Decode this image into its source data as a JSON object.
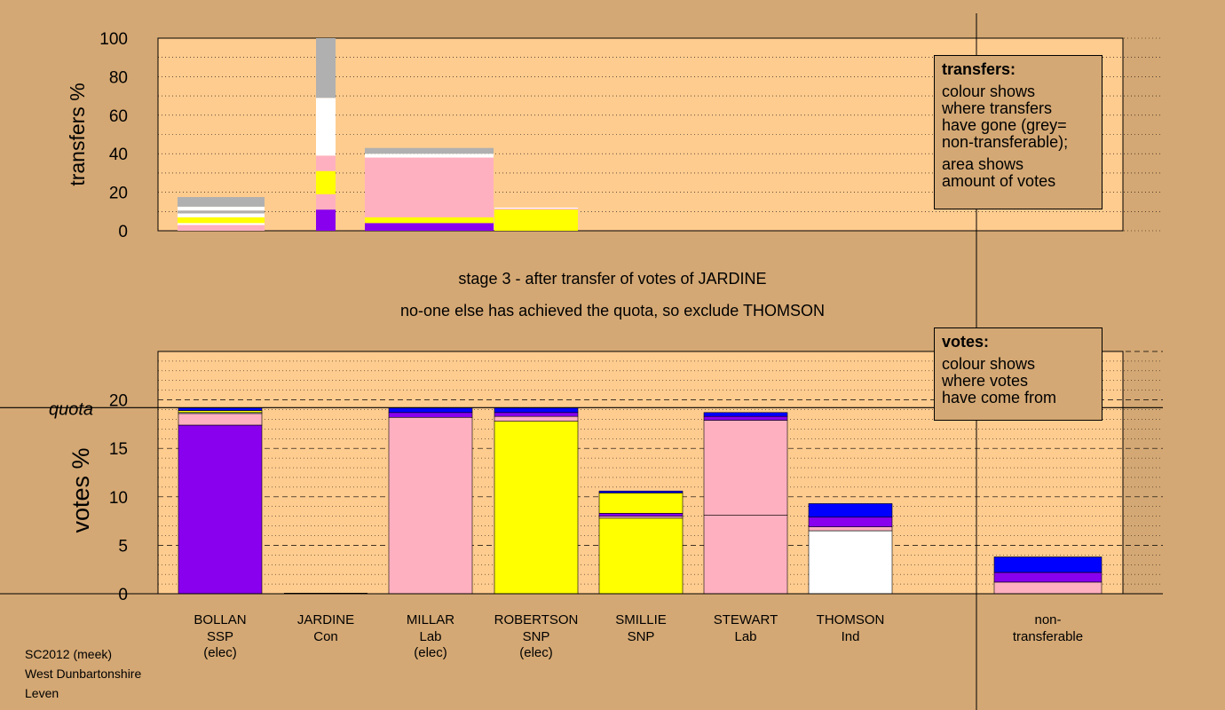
{
  "stage_title": "stage 3 - after transfer of votes of JARDINE",
  "stage_subtitle": "no-one else has achieved the quota, so exclude THOMSON",
  "legend_transfers": {
    "title": "transfers:",
    "lines": [
      "colour shows",
      "where transfers",
      "have gone (grey=",
      "non-transferable);",
      "area shows",
      "amount of votes"
    ]
  },
  "legend_votes": {
    "title": "votes:",
    "lines": [
      "colour shows",
      "where votes",
      "have come from"
    ]
  },
  "footer": [
    "SC2012 (meek)",
    "West Dunbartonshire",
    "Leven"
  ],
  "colors": {
    "background": "#d4a874",
    "plot": "#ffcc8f",
    "ssp": "#8800ee",
    "lab": "#ffb0c0",
    "snp": "#ffff00",
    "ind": "#ffffff",
    "con": "#0000ff",
    "nontransferable": "#b0b0b0"
  },
  "chart_data": [
    {
      "type": "bar",
      "ylabel": "transfers %",
      "ylim": [
        0,
        100
      ],
      "yticks": [
        "0",
        "20",
        "40",
        "60",
        "80",
        "100"
      ],
      "grid": true,
      "note": "top panel: transfers of JARDINE's votes, bar width proportional to candidate's votes",
      "columns": [
        {
          "candidate": "BOLLAN",
          "segments": [
            {
              "color": "lab",
              "value": 3
            },
            {
              "color": "ind",
              "value": 1
            },
            {
              "color": "snp",
              "value": 3
            },
            {
              "color": "ind",
              "value": 2
            },
            {
              "color": "nontransferable",
              "value": 1.5
            },
            {
              "color": "ind",
              "value": 2
            },
            {
              "color": "nontransferable",
              "value": 5
            }
          ]
        },
        {
          "candidate": "JARDINE",
          "segments": [
            {
              "color": "ssp",
              "value": 11
            },
            {
              "color": "lab",
              "value": 8
            },
            {
              "color": "snp",
              "value": 12
            },
            {
              "color": "lab",
              "value": 8
            },
            {
              "color": "ind",
              "value": 30
            },
            {
              "color": "nontransferable",
              "value": 31
            }
          ]
        },
        {
          "candidate": "MILLAR",
          "segments": [
            {
              "color": "ssp",
              "value": 4
            },
            {
              "color": "snp",
              "value": 3
            },
            {
              "color": "lab",
              "value": 31
            },
            {
              "color": "ind",
              "value": 2
            },
            {
              "color": "nontransferable",
              "value": 3
            }
          ]
        },
        {
          "candidate": "ROBERTSON",
          "segments": [
            {
              "color": "snp",
              "value": 11
            },
            {
              "color": "lab",
              "value": 0.5
            },
            {
              "color": "ind",
              "value": 0.5
            }
          ]
        }
      ]
    },
    {
      "type": "bar",
      "ylabel": "votes %",
      "ylim": [
        0,
        25
      ],
      "yticks": [
        "0",
        "5",
        "10",
        "15",
        "20"
      ],
      "quota_label": "quota",
      "quota": 19.2,
      "grid": true,
      "categories": [
        {
          "name": "BOLLAN",
          "party": "SSP",
          "status": "(elec)"
        },
        {
          "name": "JARDINE",
          "party": "Con",
          "status": ""
        },
        {
          "name": "MILLAR",
          "party": "Lab",
          "status": "(elec)"
        },
        {
          "name": "ROBERTSON",
          "party": "SNP",
          "status": "(elec)"
        },
        {
          "name": "SMILLIE",
          "party": "SNP",
          "status": ""
        },
        {
          "name": "STEWART",
          "party": "Lab",
          "status": ""
        },
        {
          "name": "THOMSON",
          "party": "Ind",
          "status": ""
        }
      ],
      "nontransferable_label": [
        "non-",
        "transferable"
      ],
      "bars": [
        {
          "candidate": "BOLLAN",
          "segments": [
            {
              "color": "ssp",
              "value": 17.4
            },
            {
              "color": "lab",
              "value": 1.2
            },
            {
              "color": "ind",
              "value": 0.1
            },
            {
              "color": "snp",
              "value": 0.2
            },
            {
              "color": "con",
              "value": 0.3
            }
          ]
        },
        {
          "candidate": "JARDINE",
          "segments": []
        },
        {
          "candidate": "MILLAR",
          "segments": [
            {
              "color": "lab",
              "value": 18.2
            },
            {
              "color": "ssp",
              "value": 0.5
            },
            {
              "color": "con",
              "value": 0.5
            }
          ]
        },
        {
          "candidate": "ROBERTSON",
          "segments": [
            {
              "color": "snp",
              "value": 17.8
            },
            {
              "color": "lab",
              "value": 0.5
            },
            {
              "color": "ssp",
              "value": 0.4
            },
            {
              "color": "con",
              "value": 0.5
            }
          ]
        },
        {
          "candidate": "SMILLIE",
          "segments": [
            {
              "color": "snp",
              "value": 7.8
            },
            {
              "color": "lab",
              "value": 0.2
            },
            {
              "color": "ssp",
              "value": 0.3
            },
            {
              "color": "snp",
              "value": 2.1
            },
            {
              "color": "con",
              "value": 0.2
            }
          ]
        },
        {
          "candidate": "STEWART",
          "segments": [
            {
              "color": "lab",
              "value": 8.1
            },
            {
              "color": "lab",
              "value": 9.8
            },
            {
              "color": "ssp",
              "value": 0.4
            },
            {
              "color": "con",
              "value": 0.4
            }
          ]
        },
        {
          "candidate": "THOMSON",
          "segments": [
            {
              "color": "ind",
              "value": 6.5
            },
            {
              "color": "lab",
              "value": 0.4
            },
            {
              "color": "ssp",
              "value": 1.0
            },
            {
              "color": "con",
              "value": 1.4
            }
          ]
        },
        {
          "candidate": "non-transferable",
          "segments": [
            {
              "color": "lab",
              "value": 1.2
            },
            {
              "color": "ssp",
              "value": 1.0
            },
            {
              "color": "con",
              "value": 1.6
            }
          ]
        }
      ]
    }
  ]
}
